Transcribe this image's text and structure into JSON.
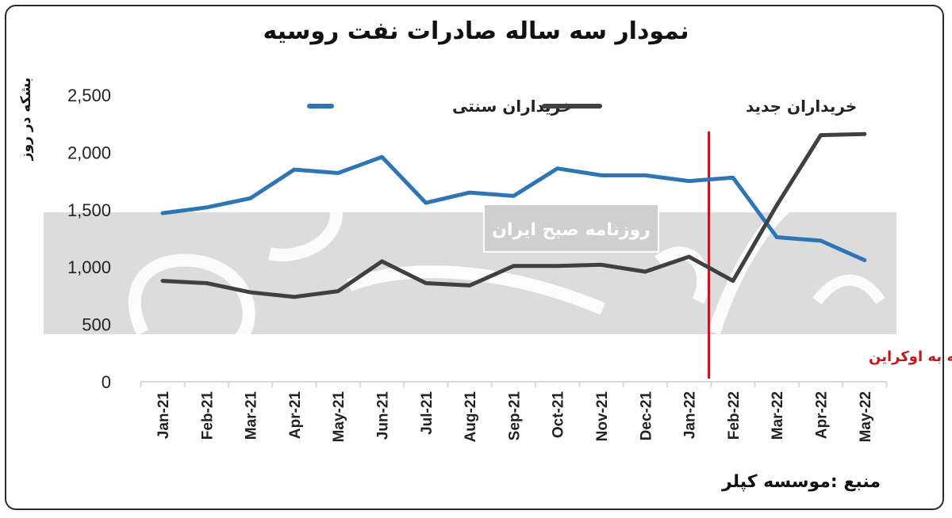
{
  "chart_data": {
    "type": "line",
    "title": "نمودار سه ساله صادرات نفت روسیه",
    "ylabel": "بشکه در روز",
    "xlabel": "",
    "categories": [
      "Jan-21",
      "Feb-21",
      "Mar-21",
      "Apr-21",
      "May-21",
      "Jun-21",
      "Jul-21",
      "Aug-21",
      "Sep-21",
      "Oct-21",
      "Nov-21",
      "Dec-21",
      "Jan-22",
      "Feb-22",
      "Mar-22",
      "Apr-22",
      "May-22"
    ],
    "y_ticks": [
      "0",
      "500",
      "1,000",
      "1,500",
      "2,000",
      "2,500"
    ],
    "ylim": [
      0,
      2500
    ],
    "grid": false,
    "legend_position": "top",
    "series": [
      {
        "name": "خریداران سنتی",
        "color": "#2e75b6",
        "values": [
          1470,
          1520,
          1600,
          1850,
          1820,
          1960,
          1560,
          1650,
          1620,
          1860,
          1800,
          1800,
          1750,
          1780,
          1260,
          1230,
          1060
        ]
      },
      {
        "name": "خریداران جدید",
        "color": "#404040",
        "values": [
          880,
          860,
          780,
          740,
          790,
          1050,
          860,
          840,
          1010,
          1010,
          1020,
          960,
          1090,
          880,
          1540,
          2150,
          2160
        ]
      }
    ],
    "annotation": {
      "label": "حمله روسیه به اوکراین",
      "color": "#c4161c",
      "position_between": [
        "Jan-22",
        "Feb-22"
      ]
    }
  },
  "watermark": {
    "banner_text": "روزنامه صبح ایران"
  },
  "source_text": "منبع :موسسه کپلر"
}
